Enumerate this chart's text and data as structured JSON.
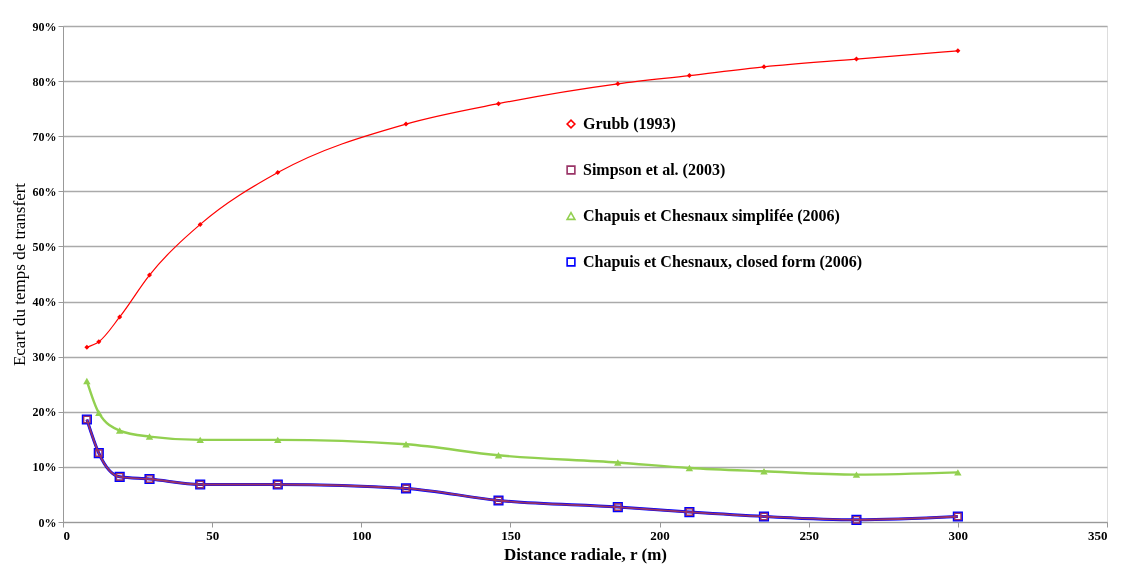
{
  "chart_data": {
    "type": "line",
    "xlabel": "Distance radiale, r (m)",
    "ylabel": "Ecart du temps de transfert",
    "x": [
      8,
      12,
      19,
      29,
      46,
      72,
      115,
      146,
      186,
      210,
      235,
      266,
      300
    ],
    "series": [
      {
        "name": "Grubb (1993)",
        "color": "#ff0000",
        "marker": "diamond",
        "values": [
          31.7,
          32.7,
          37.2,
          44.8,
          54.0,
          63.4,
          72.2,
          75.9,
          79.5,
          81.0,
          82.6,
          84.0,
          85.5
        ]
      },
      {
        "name": "Simpson et al. (2003)",
        "color": "#993366",
        "marker": "square",
        "values": [
          18.6,
          12.5,
          8.2,
          7.8,
          6.8,
          6.8,
          6.1,
          3.9,
          2.7,
          1.8,
          1.0,
          0.4,
          1.0
        ]
      },
      {
        "name": "Chapuis et Chesnaux simplifée (2006)",
        "color": "#92d050",
        "marker": "triangle",
        "values": [
          25.6,
          19.8,
          16.6,
          15.5,
          14.9,
          14.9,
          14.1,
          12.1,
          10.8,
          9.8,
          9.2,
          8.6,
          9.0
        ]
      },
      {
        "name": "Chapuis et Chesnaux, closed form (2006)",
        "color": "#0000ff",
        "marker": "square",
        "values": [
          18.6,
          12.5,
          8.2,
          7.8,
          6.8,
          6.8,
          6.1,
          3.9,
          2.7,
          1.8,
          1.0,
          0.4,
          1.0
        ]
      }
    ],
    "xlim": [
      0,
      350
    ],
    "xticks": [
      0,
      50,
      100,
      150,
      200,
      250,
      300,
      350
    ],
    "ylim": [
      0,
      90
    ],
    "yticks": [
      {
        "value": 0,
        "label": "0%"
      },
      {
        "value": 10,
        "label": "10%"
      },
      {
        "value": 20,
        "label": "20%"
      },
      {
        "value": 30,
        "label": "30%"
      },
      {
        "value": 40,
        "label": "40%"
      },
      {
        "value": 50,
        "label": "50%"
      },
      {
        "value": 60,
        "label": "60%"
      },
      {
        "value": 70,
        "label": "70%"
      },
      {
        "value": 80,
        "label": "80%"
      },
      {
        "value": 90,
        "label": "90%"
      }
    ],
    "grid": "y",
    "legend": "right",
    "line_style": "solid"
  }
}
